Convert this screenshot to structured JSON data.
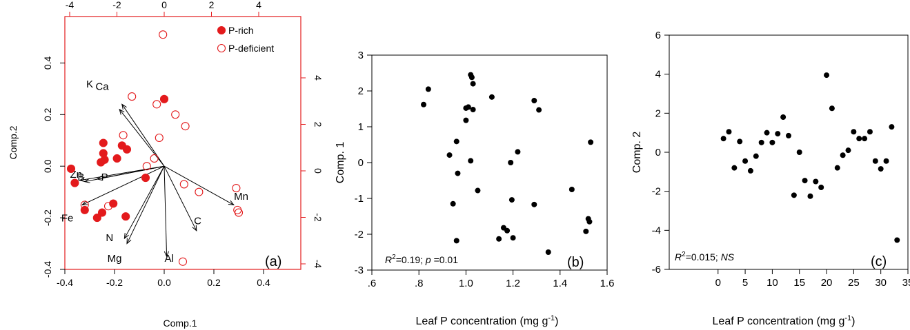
{
  "colors": {
    "red": "#e31a1c",
    "black": "#000000"
  },
  "chart_data": [
    {
      "type": "scatter",
      "subtype": "biplot",
      "panel_label": "(a)",
      "xlabel": "Comp.1",
      "ylabel": "Comp.2",
      "xlim": [
        -0.4,
        0.55
      ],
      "ylim": [
        -0.4,
        0.58
      ],
      "xticks": [
        "-0.4",
        "-0.2",
        "0.0",
        "0.2",
        "0.4"
      ],
      "yticks": [
        "-0.4",
        "-0.2",
        "0.0",
        "0.2",
        "0.4"
      ],
      "top_ticks": [
        "-4",
        "-2",
        "0",
        "2",
        "4"
      ],
      "right_ticks": [
        "-4",
        "-2",
        "0",
        "2",
        "4"
      ],
      "legend": {
        "position": "top-right",
        "entries": [
          "P-rich",
          "P-deficient"
        ]
      },
      "series": [
        {
          "name": "P-rich",
          "marker": "filled-circle",
          "points": [
            [
              -0.375,
              -0.01
            ],
            [
              -0.36,
              -0.065
            ],
            [
              -0.32,
              -0.17
            ],
            [
              -0.27,
              -0.2
            ],
            [
              -0.205,
              -0.145
            ],
            [
              -0.25,
              -0.18
            ],
            [
              -0.155,
              -0.195
            ],
            [
              -0.255,
              0.015
            ],
            [
              -0.245,
              0.05
            ],
            [
              -0.245,
              0.09
            ],
            [
              -0.24,
              0.025
            ],
            [
              -0.19,
              0.03
            ],
            [
              -0.17,
              0.08
            ],
            [
              -0.15,
              0.065
            ],
            [
              -0.075,
              -0.045
            ],
            [
              0.0,
              0.26
            ]
          ]
        },
        {
          "name": "P-deficient",
          "marker": "open-circle",
          "points": [
            [
              -0.005,
              0.51
            ],
            [
              -0.13,
              0.27
            ],
            [
              -0.03,
              0.24
            ],
            [
              0.045,
              0.2
            ],
            [
              0.085,
              0.155
            ],
            [
              -0.165,
              0.12
            ],
            [
              -0.02,
              0.11
            ],
            [
              -0.07,
              0.0
            ],
            [
              -0.04,
              0.03
            ],
            [
              0.08,
              -0.07
            ],
            [
              0.14,
              -0.1
            ],
            [
              0.29,
              -0.085
            ],
            [
              0.295,
              -0.17
            ],
            [
              0.3,
              -0.18
            ],
            [
              -0.32,
              -0.15
            ],
            [
              -0.225,
              -0.155
            ],
            [
              0.075,
              -0.37
            ]
          ]
        }
      ],
      "loadings": [
        {
          "label": "K",
          "tip": [
            -0.18,
            0.22
          ],
          "label_at": [
            -0.3,
            0.305
          ]
        },
        {
          "label": "Ca",
          "tip": [
            -0.17,
            0.24
          ],
          "label_at": [
            -0.25,
            0.295
          ]
        },
        {
          "label": "Zn",
          "tip": [
            -0.34,
            -0.055
          ],
          "label_at": [
            -0.355,
            -0.045
          ]
        },
        {
          "label": "B",
          "tip": [
            -0.32,
            -0.06
          ],
          "label_at": [
            -0.335,
            -0.055
          ]
        },
        {
          "label": "P",
          "tip": [
            -0.27,
            -0.05
          ],
          "label_at": [
            -0.24,
            -0.055
          ]
        },
        {
          "label": "Fe",
          "tip": [
            -0.33,
            -0.15
          ],
          "label_at": [
            -0.39,
            -0.215
          ]
        },
        {
          "label": "N",
          "tip": [
            -0.15,
            -0.3
          ],
          "label_at": [
            -0.22,
            -0.29
          ]
        },
        {
          "label": "Mg",
          "tip": [
            -0.16,
            -0.28
          ],
          "label_at": [
            -0.2,
            -0.37
          ]
        },
        {
          "label": "Al",
          "tip": [
            0.01,
            -0.35
          ],
          "label_at": [
            0.02,
            -0.37
          ]
        },
        {
          "label": "C",
          "tip": [
            0.13,
            -0.25
          ],
          "label_at": [
            0.135,
            -0.225
          ]
        },
        {
          "label": "Mn",
          "tip": [
            0.28,
            -0.15
          ],
          "label_at": [
            0.31,
            -0.13
          ]
        }
      ]
    },
    {
      "type": "scatter",
      "panel_label": "(b)",
      "xlabel": "Leaf P concentration (mg g⁻¹)",
      "ylabel": "Comp. 1",
      "xlim": [
        0.6,
        1.6
      ],
      "ylim": [
        -3,
        3
      ],
      "xticks": [
        ".6",
        ".8",
        "1.0",
        "1.2",
        "1.4",
        "1.6"
      ],
      "yticks": [
        "3",
        "2",
        "1",
        "0",
        "-1",
        "-2",
        "-3"
      ],
      "annotation": "R²=0.19; p =0.01",
      "points": [
        [
          0.82,
          1.62
        ],
        [
          0.84,
          2.05
        ],
        [
          0.93,
          0.21
        ],
        [
          0.945,
          -1.15
        ],
        [
          0.96,
          0.59
        ],
        [
          0.965,
          -0.3
        ],
        [
          0.96,
          -2.18
        ],
        [
          1.0,
          1.52
        ],
        [
          1.01,
          1.55
        ],
        [
          1.0,
          1.18
        ],
        [
          1.02,
          2.45
        ],
        [
          1.025,
          2.38
        ],
        [
          1.03,
          2.2
        ],
        [
          1.03,
          1.48
        ],
        [
          1.02,
          0.05
        ],
        [
          1.05,
          -0.78
        ],
        [
          1.11,
          1.83
        ],
        [
          1.14,
          -2.13
        ],
        [
          1.16,
          -1.82
        ],
        [
          1.175,
          -1.9
        ],
        [
          1.19,
          0.0
        ],
        [
          1.195,
          -1.04
        ],
        [
          1.2,
          -2.1
        ],
        [
          1.22,
          0.3
        ],
        [
          1.29,
          1.73
        ],
        [
          1.31,
          1.47
        ],
        [
          1.29,
          -1.17
        ],
        [
          1.35,
          -2.5
        ],
        [
          1.45,
          -0.75
        ],
        [
          1.51,
          -1.92
        ],
        [
          1.52,
          -1.57
        ],
        [
          1.525,
          -1.65
        ],
        [
          1.53,
          0.57
        ]
      ]
    },
    {
      "type": "scatter",
      "panel_label": "(c)",
      "xlabel": "Leaf P concentration (mg g⁻¹)",
      "ylabel": "Comp. 2",
      "xlim": [
        -9,
        35
      ],
      "ylim": [
        -6,
        6
      ],
      "xticks": [
        "0",
        "5",
        "10",
        "15",
        "20",
        "25",
        "30",
        "35"
      ],
      "yticks": [
        "6",
        "4",
        "2",
        "0",
        "-2",
        "-4",
        "-6"
      ],
      "annotation": "R²=0.015; NS",
      "points": [
        [
          1,
          0.7
        ],
        [
          2,
          1.05
        ],
        [
          3,
          -0.8
        ],
        [
          4,
          0.55
        ],
        [
          5,
          -0.45
        ],
        [
          6,
          -0.95
        ],
        [
          7,
          -0.2
        ],
        [
          8,
          0.5
        ],
        [
          9,
          1.0
        ],
        [
          10,
          0.5
        ],
        [
          11,
          0.95
        ],
        [
          12,
          1.8
        ],
        [
          13,
          0.85
        ],
        [
          14,
          -2.2
        ],
        [
          15,
          0.0
        ],
        [
          16,
          -1.45
        ],
        [
          17,
          -2.25
        ],
        [
          18,
          -1.5
        ],
        [
          19,
          -1.8
        ],
        [
          20,
          3.95
        ],
        [
          21,
          2.25
        ],
        [
          22,
          -0.8
        ],
        [
          23,
          -0.15
        ],
        [
          24,
          0.1
        ],
        [
          25,
          1.05
        ],
        [
          26,
          0.7
        ],
        [
          27,
          0.7
        ],
        [
          28,
          1.05
        ],
        [
          29,
          -0.45
        ],
        [
          30,
          -0.85
        ],
        [
          31,
          -0.45
        ],
        [
          32,
          1.3
        ],
        [
          33,
          -4.5
        ]
      ]
    }
  ]
}
